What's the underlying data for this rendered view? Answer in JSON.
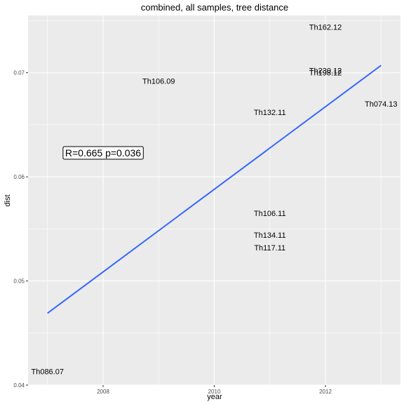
{
  "chart_data": {
    "type": "scatter",
    "title": "combined, all samples, tree distance",
    "xlabel": "year",
    "ylabel": "dist",
    "xlim": [
      2006.65,
      2013.35
    ],
    "ylim": [
      0.04,
      0.0755
    ],
    "x_ticks": [
      2008,
      2010,
      2012
    ],
    "x_tick_labels": [
      "2008",
      "2010",
      "2012"
    ],
    "y_ticks": [
      0.04,
      0.05,
      0.06,
      0.07
    ],
    "y_tick_labels": [
      "0.04",
      "0.05",
      "0.06",
      "0.07"
    ],
    "grid": true,
    "points": [
      {
        "label": "Th162.12",
        "x": 2012,
        "y": 0.0744
      },
      {
        "label": "Th230.12",
        "x": 2012,
        "y": 0.0702
      },
      {
        "label": "Th198.12",
        "x": 2012,
        "y": 0.07
      },
      {
        "label": "Th106.09",
        "x": 2009,
        "y": 0.0692
      },
      {
        "label": "Th074.13",
        "x": 2013,
        "y": 0.067
      },
      {
        "label": "Th132.11",
        "x": 2011,
        "y": 0.0662
      },
      {
        "label": "Th106.11",
        "x": 2011,
        "y": 0.0565
      },
      {
        "label": "Th134.11",
        "x": 2011,
        "y": 0.0544
      },
      {
        "label": "Th117.11",
        "x": 2011,
        "y": 0.0532
      },
      {
        "label": "Th086.07",
        "x": 2007,
        "y": 0.0413
      }
    ],
    "fit_line": {
      "x": [
        2007,
        2013
      ],
      "y": [
        0.0469,
        0.0707
      ],
      "color": "#3366FF"
    },
    "annotation": {
      "text": "R=0.665 p=0.036",
      "x": 2008,
      "y": 0.0623
    },
    "colors": {
      "panel": "#EBEBEB",
      "grid": "#FFFFFF",
      "line": "#3366FF"
    }
  }
}
